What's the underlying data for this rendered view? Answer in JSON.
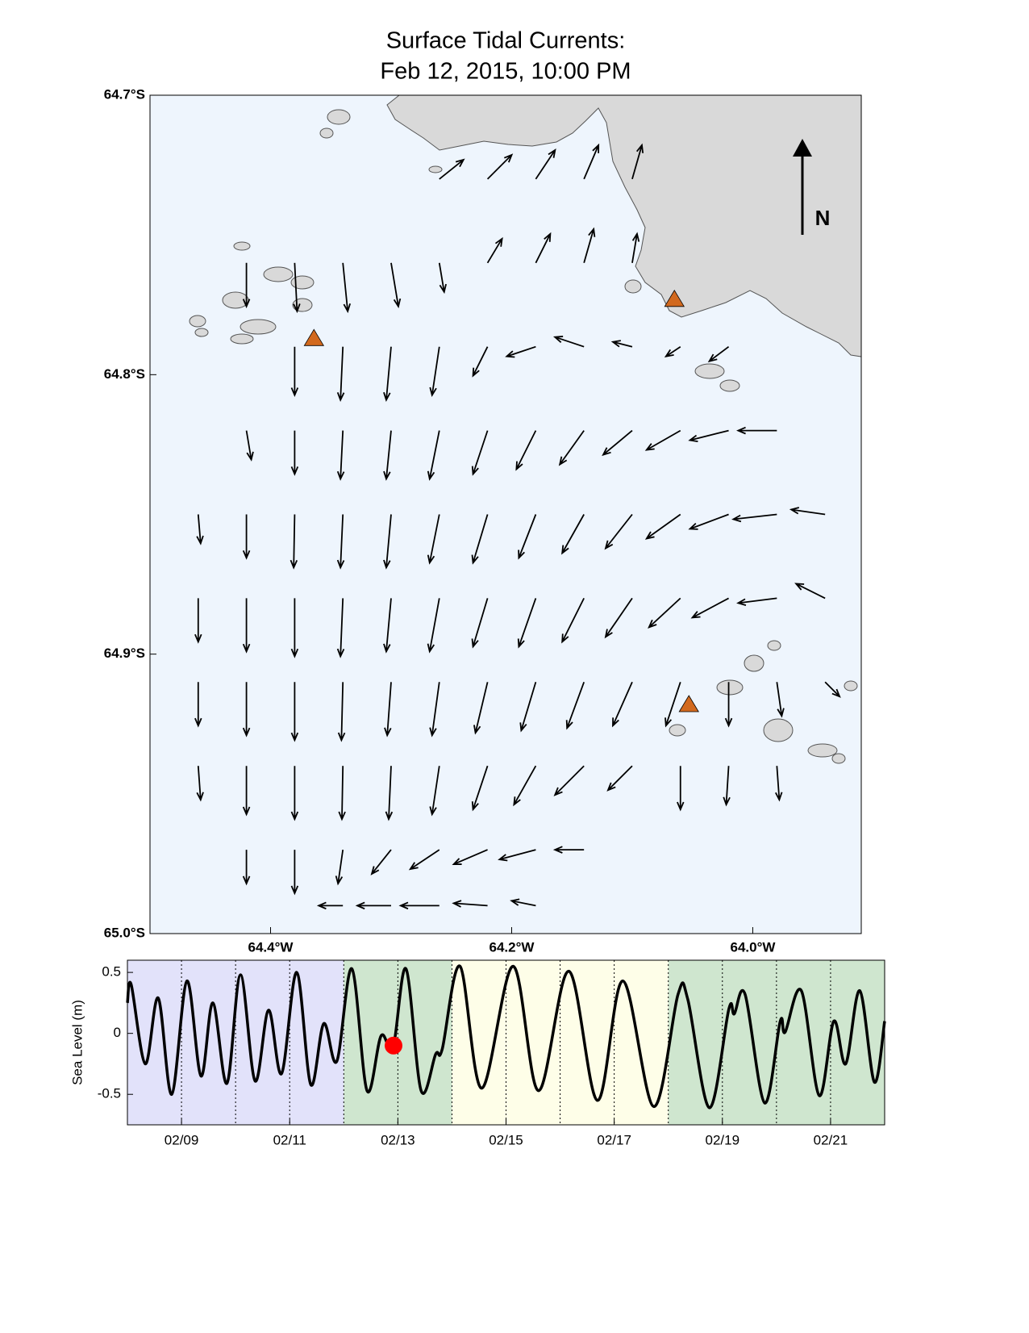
{
  "title_lines": [
    "Surface Tidal Currents:",
    "Feb 12, 2015, 10:00 PM"
  ],
  "chart_data": [
    {
      "type": "quiver",
      "xlim": [
        -64.5,
        -63.91
      ],
      "ylim": [
        -65.0,
        -64.7
      ],
      "xticks": [
        {
          "value": -64.4,
          "label": "64.4°W"
        },
        {
          "value": -64.2,
          "label": "64.2°W"
        },
        {
          "value": -64.0,
          "label": "64.0°W"
        }
      ],
      "yticks": [
        {
          "value": -64.7,
          "label": "64.7°S"
        },
        {
          "value": -64.8,
          "label": "64.8°S"
        },
        {
          "value": -64.9,
          "label": "64.9°S"
        },
        {
          "value": -65.0,
          "label": "65.0°S"
        }
      ],
      "north_label": "N",
      "water_color": "#eef5fd",
      "land_color": "#d9d9d9",
      "arrow_color": "#000000",
      "markers": {
        "lon": [
          -64.364,
          -64.065,
          -64.053
        ],
        "lat": [
          -64.787,
          -64.773,
          -64.918
        ],
        "color": "#d2691e"
      },
      "vectors": [
        {
          "lat": -64.73,
          "lon": [
            -64.26,
            -64.22,
            -64.18,
            -64.14,
            -64.1
          ],
          "u": [
            0.5,
            0.5,
            0.4,
            0.3,
            0.2
          ],
          "v": [
            0.4,
            0.5,
            0.6,
            0.7,
            0.7
          ]
        },
        {
          "lat": -64.76,
          "lon": [
            -64.42,
            -64.38,
            -64.34,
            -64.3,
            -64.26,
            -64.22,
            -64.18,
            -64.14,
            -64.1
          ],
          "u": [
            0,
            0.05,
            0.1,
            0.15,
            0.1,
            0.3,
            0.3,
            0.2,
            0.1
          ],
          "v": [
            -0.9,
            -1,
            -1,
            -0.9,
            -0.6,
            0.5,
            0.6,
            0.7,
            0.6
          ]
        },
        {
          "lat": -64.79,
          "lon": [
            -64.38,
            -64.34,
            -64.3,
            -64.26,
            -64.22,
            -64.18,
            -64.14,
            -64.1,
            -64.06,
            -64.02
          ],
          "u": [
            0,
            -0.05,
            -0.1,
            -0.15,
            -0.3,
            -0.6,
            -0.6,
            -0.4,
            -0.3,
            -0.4
          ],
          "v": [
            -1,
            -1.1,
            -1.1,
            -1,
            -0.6,
            -0.2,
            0.2,
            0.1,
            -0.2,
            -0.3
          ]
        },
        {
          "lat": -64.82,
          "lon": [
            -64.42,
            -64.38,
            -64.34,
            -64.3,
            -64.26,
            -64.22,
            -64.18,
            -64.14,
            -64.1,
            -64.06,
            -64.02,
            -63.98
          ],
          "u": [
            0.1,
            0,
            -0.05,
            -0.1,
            -0.2,
            -0.3,
            -0.4,
            -0.5,
            -0.6,
            -0.7,
            -0.8,
            -0.8
          ],
          "v": [
            -0.6,
            -0.9,
            -1,
            -1,
            -1,
            -0.9,
            -0.8,
            -0.7,
            -0.5,
            -0.4,
            -0.2,
            0
          ]
        },
        {
          "lat": -64.85,
          "lon": [
            -64.46,
            -64.42,
            -64.38,
            -64.34,
            -64.3,
            -64.26,
            -64.22,
            -64.18,
            -64.14,
            -64.1,
            -64.06,
            -64.02,
            -63.98,
            -63.94
          ],
          "u": [
            0.05,
            0,
            -0.02,
            -0.05,
            -0.1,
            -0.2,
            -0.3,
            -0.35,
            -0.45,
            -0.55,
            -0.7,
            -0.8,
            -0.9,
            -0.7
          ],
          "v": [
            -0.6,
            -0.9,
            -1.1,
            -1.1,
            -1.1,
            -1,
            -1,
            -0.9,
            -0.8,
            -0.7,
            -0.5,
            -0.3,
            -0.1,
            0.1
          ]
        },
        {
          "lat": -64.88,
          "lon": [
            -64.46,
            -64.42,
            -64.38,
            -64.34,
            -64.3,
            -64.26,
            -64.22,
            -64.18,
            -64.14,
            -64.1,
            -64.06,
            -64.02,
            -63.98,
            -63.94
          ],
          "u": [
            0,
            0,
            0,
            -0.05,
            -0.1,
            -0.2,
            -0.3,
            -0.35,
            -0.45,
            -0.55,
            -0.65,
            -0.75,
            -0.8,
            -0.6
          ],
          "v": [
            -0.9,
            -1.1,
            -1.2,
            -1.2,
            -1.1,
            -1.1,
            -1,
            -1,
            -0.9,
            -0.8,
            -0.6,
            -0.4,
            -0.1,
            0.3
          ]
        },
        {
          "lat": -64.91,
          "lon": [
            -64.46,
            -64.42,
            -64.38,
            -64.34,
            -64.3,
            -64.26,
            -64.22,
            -64.18,
            -64.14,
            -64.1,
            -64.06,
            -64.02,
            -63.98,
            -63.94
          ],
          "u": [
            0,
            0,
            0,
            -0.03,
            -0.08,
            -0.15,
            -0.25,
            -0.3,
            -0.35,
            -0.4,
            -0.3,
            0,
            0.1,
            0.3
          ],
          "v": [
            -0.9,
            -1.1,
            -1.2,
            -1.2,
            -1.1,
            -1.1,
            -1.05,
            -1,
            -0.95,
            -0.9,
            -0.9,
            -0.9,
            -0.7,
            -0.3
          ]
        },
        {
          "lat": -64.94,
          "lon": [
            -64.46,
            -64.42,
            -64.38,
            -64.34,
            -64.3,
            -64.26,
            -64.22,
            -64.18,
            -64.14,
            -64.1,
            -64.06,
            -64.02,
            -63.98
          ],
          "u": [
            0.05,
            0,
            0,
            -0.02,
            -0.05,
            -0.15,
            -0.3,
            -0.45,
            -0.6,
            -0.5,
            0,
            -0.05,
            0.05
          ],
          "v": [
            -0.7,
            -1,
            -1.1,
            -1.1,
            -1.1,
            -1,
            -0.9,
            -0.8,
            -0.6,
            -0.5,
            -0.9,
            -0.8,
            -0.7
          ]
        },
        {
          "lat": -64.97,
          "lon": [
            -64.42,
            -64.38,
            -64.34,
            -64.3,
            -64.26,
            -64.22,
            -64.18,
            -64.14
          ],
          "u": [
            0,
            0,
            -0.1,
            -0.4,
            -0.6,
            -0.7,
            -0.75,
            -0.6
          ],
          "v": [
            -0.7,
            -0.9,
            -0.7,
            -0.5,
            -0.4,
            -0.3,
            -0.2,
            0
          ]
        },
        {
          "lat": -64.99,
          "lon": [
            -64.34,
            -64.3,
            -64.26,
            -64.22,
            -64.18
          ],
          "u": [
            -0.5,
            -0.7,
            -0.8,
            -0.7,
            -0.5
          ],
          "v": [
            0,
            0,
            0,
            0.05,
            0.1
          ]
        }
      ]
    },
    {
      "type": "line",
      "ylabel": "Sea Level (m)",
      "xlim": [
        8,
        22
      ],
      "ylim": [
        -0.75,
        0.6
      ],
      "xticks": [
        {
          "value": 9,
          "label": "02/09"
        },
        {
          "value": 11,
          "label": "02/11"
        },
        {
          "value": 13,
          "label": "02/13"
        },
        {
          "value": 15,
          "label": "02/15"
        },
        {
          "value": 17,
          "label": "02/17"
        },
        {
          "value": 19,
          "label": "02/19"
        },
        {
          "value": 21,
          "label": "02/21"
        }
      ],
      "minor_xticks": [
        9,
        10,
        11,
        12,
        13,
        14,
        15,
        16,
        17,
        18,
        19,
        20,
        21
      ],
      "yticks": [
        -0.5,
        0,
        0.5
      ],
      "bands": [
        {
          "start": 8,
          "end": 12,
          "color": "#e2e2fa"
        },
        {
          "start": 12,
          "end": 14,
          "color": "#cfe6cf"
        },
        {
          "start": 14,
          "end": 18,
          "color": "#fefee8"
        },
        {
          "start": 18,
          "end": 22,
          "color": "#cfe6cf"
        }
      ],
      "series": [
        {
          "color": "#000000",
          "x": [
            8.0,
            8.07,
            8.33,
            8.57,
            8.82,
            9.1,
            9.36,
            9.58,
            9.84,
            10.09,
            10.36,
            10.61,
            10.85,
            11.13,
            11.39,
            11.63,
            11.87,
            12.15,
            12.43,
            12.69,
            12.91,
            13.15,
            13.43,
            13.7,
            13.82,
            14.15,
            14.55,
            15.13,
            15.6,
            16.16,
            16.69,
            17.16,
            17.73,
            18.18,
            18.36,
            18.76,
            19.12,
            19.22,
            19.42,
            19.78,
            20.07,
            20.16,
            20.46,
            20.79,
            21.06,
            21.28,
            21.54,
            21.81,
            22.0
          ],
          "values": [
            0.25,
            0.4,
            -0.25,
            0.29,
            -0.5,
            0.43,
            -0.35,
            0.25,
            -0.41,
            0.48,
            -0.39,
            0.19,
            -0.33,
            0.5,
            -0.42,
            0.08,
            -0.23,
            0.53,
            -0.47,
            -0.02,
            -0.12,
            0.53,
            -0.47,
            -0.17,
            -0.13,
            0.55,
            -0.45,
            0.55,
            -0.47,
            0.51,
            -0.55,
            0.43,
            -0.6,
            0.32,
            0.28,
            -0.61,
            0.2,
            0.16,
            0.32,
            -0.57,
            0.1,
            0.01,
            0.35,
            -0.51,
            0.1,
            -0.25,
            0.35,
            -0.4,
            0.1
          ]
        }
      ],
      "current": {
        "x": 12.92,
        "y": -0.1,
        "color": "#ff0000"
      }
    }
  ]
}
